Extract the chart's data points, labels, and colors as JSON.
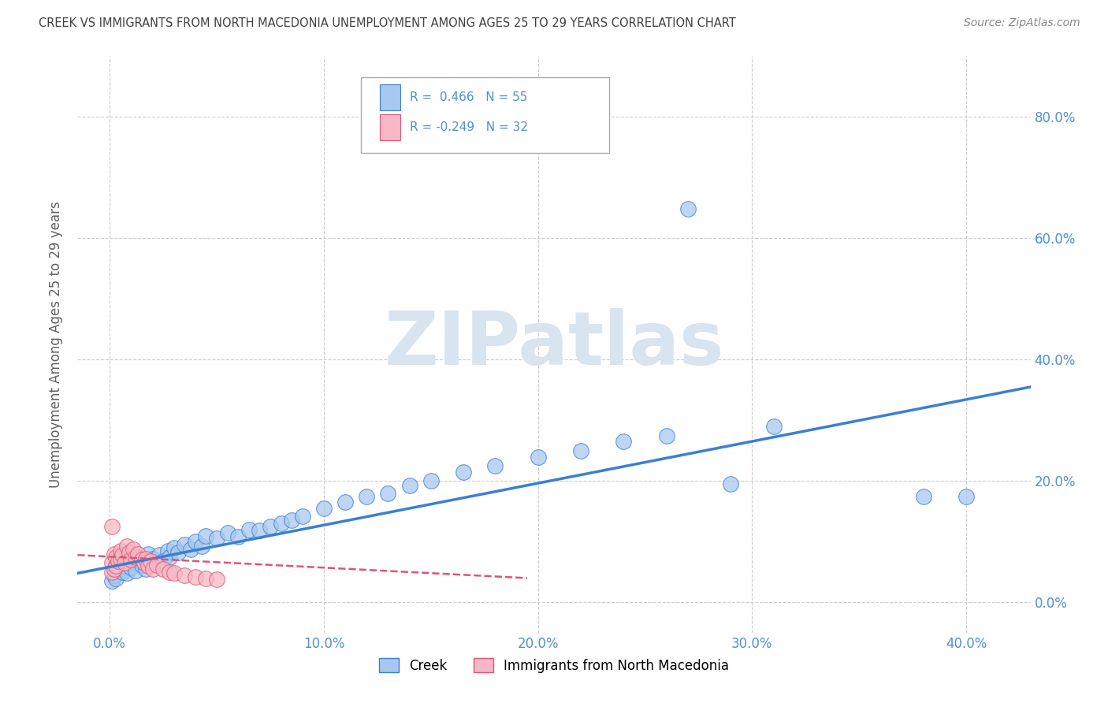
{
  "title": "CREEK VS IMMIGRANTS FROM NORTH MACEDONIA UNEMPLOYMENT AMONG AGES 25 TO 29 YEARS CORRELATION CHART",
  "source": "Source: ZipAtlas.com",
  "ylabel": "Unemployment Among Ages 25 to 29 years",
  "xlabel_ticks": [
    "0.0%",
    "10.0%",
    "20.0%",
    "30.0%",
    "40.0%"
  ],
  "xlabel_vals": [
    0.0,
    0.1,
    0.2,
    0.3,
    0.4
  ],
  "ylabel_ticks": [
    "0.0%",
    "20.0%",
    "40.0%",
    "60.0%",
    "80.0%"
  ],
  "ylabel_vals": [
    0.0,
    0.2,
    0.4,
    0.6,
    0.8
  ],
  "xlim": [
    -0.015,
    0.43
  ],
  "ylim": [
    -0.05,
    0.9
  ],
  "creek_R": 0.466,
  "creek_N": 55,
  "nm_R": -0.249,
  "nm_N": 32,
  "creek_color": "#a8c8ef",
  "creek_line_color": "#3a7fd5",
  "nm_color": "#f5b8c4",
  "nm_line_color": "#e05575",
  "background_color": "#ffffff",
  "grid_color": "#cccccc",
  "watermark_color": "#d8e4f0",
  "title_color": "#404040",
  "axis_label_color": "#606060",
  "tick_color": "#5090d0",
  "legend_label_color": "#333333",
  "legend_labels": [
    "Creek",
    "Immigrants from North Macedonia"
  ],
  "creek_line_x0": -0.015,
  "creek_line_x1": 0.43,
  "creek_line_y0": 0.048,
  "creek_line_y1": 0.355,
  "nm_line_x0": -0.015,
  "nm_line_x1": 0.195,
  "nm_line_y0": 0.078,
  "nm_line_y1": 0.04
}
